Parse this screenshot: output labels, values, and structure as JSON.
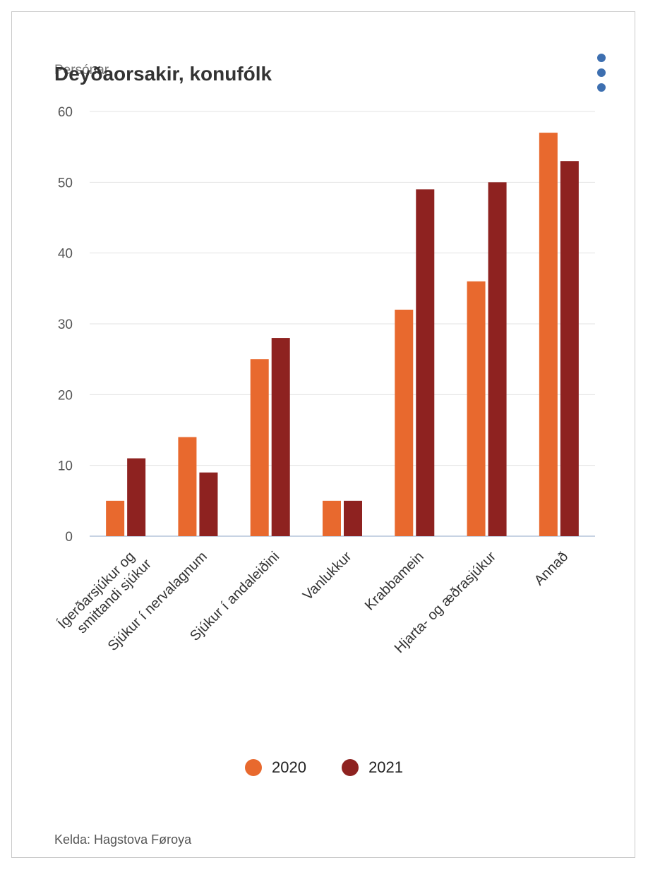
{
  "chart_data": {
    "type": "bar",
    "title": "Deyðaorsakir, konufólk",
    "ylabel": "Persónar",
    "xlabel": "",
    "ylim": [
      0,
      60
    ],
    "yticks": [
      0,
      10,
      20,
      30,
      40,
      50,
      60
    ],
    "grid": true,
    "legend_position": "bottom",
    "categories": [
      "Ígerðarsjúkur og smittandi sjúkur",
      "Sjúkur í nervalagnum",
      "Sjúkur í andaleiðini",
      "Vanlukkur",
      "Krabbamein",
      "Hjarta- og æðrasjúkur",
      "Annað"
    ],
    "series": [
      {
        "name": "2020",
        "color": "#e8692e",
        "values": [
          5,
          14,
          25,
          5,
          32,
          36,
          57
        ]
      },
      {
        "name": "2021",
        "color": "#8e2220",
        "values": [
          11,
          9,
          28,
          5,
          49,
          50,
          53
        ]
      }
    ],
    "source": "Kelda: Hagstova Føroya"
  },
  "menu": {
    "icon": "more-vertical-icon"
  }
}
